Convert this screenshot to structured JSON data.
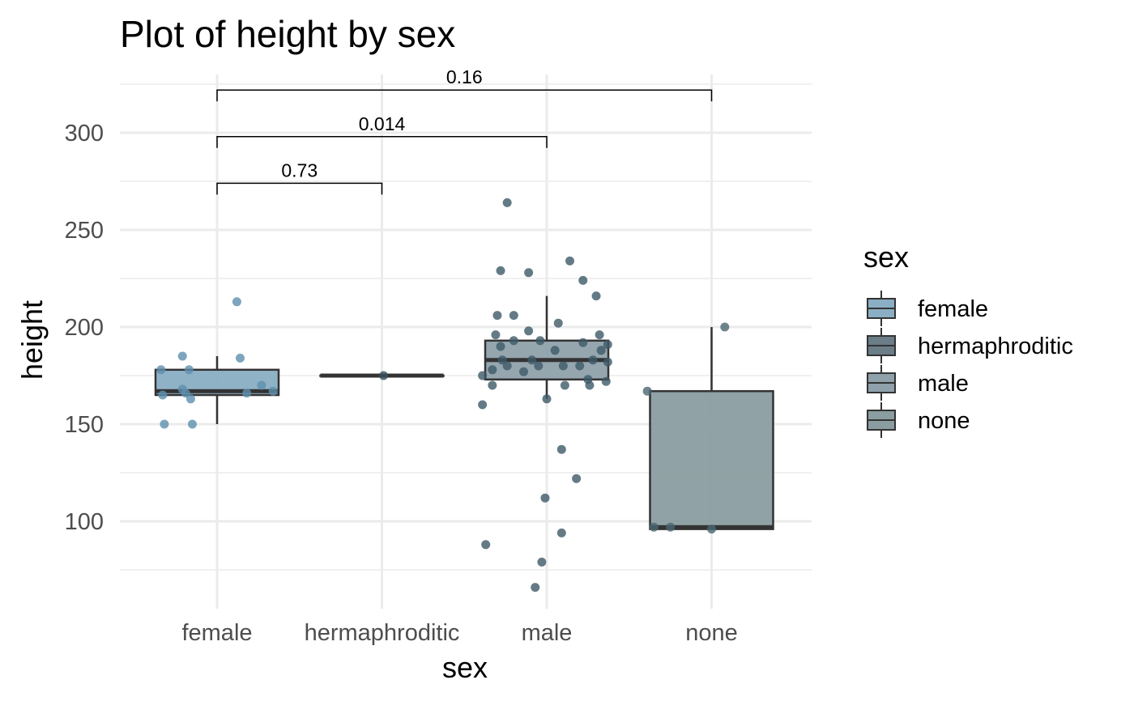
{
  "chart_data": {
    "type": "box",
    "title": "Plot of height by sex",
    "xlabel": "sex",
    "ylabel": "height",
    "categories": [
      "female",
      "hermaphroditic",
      "male",
      "none"
    ],
    "ylim": [
      55,
      330
    ],
    "yticks": [
      100,
      150,
      200,
      250,
      300
    ],
    "grid": true,
    "legend": {
      "title": "sex",
      "position": "right",
      "entries": [
        "female",
        "hermaphroditic",
        "male",
        "none"
      ]
    },
    "colors": {
      "female": "#5e8fae",
      "hermaphroditic": "#37505c",
      "male": "#3d5a68",
      "none": "#4a6770",
      "box_stroke": "#333333",
      "grid": "#ebebeb"
    },
    "boxes": [
      {
        "category": "female",
        "whisker_low": 150,
        "q1": 165,
        "median": 167,
        "q3": 178,
        "whisker_high": 185,
        "fill": "#8aaec4"
      },
      {
        "category": "hermaphroditic",
        "whisker_low": 175,
        "q1": 175,
        "median": 175,
        "q3": 175,
        "whisker_high": 175,
        "fill": "#6b7d87"
      },
      {
        "category": "male",
        "whisker_low": 163,
        "q1": 173,
        "median": 183,
        "q3": 193,
        "whisker_high": 216,
        "fill": "#8fa1ab"
      },
      {
        "category": "none",
        "whisker_low": 96,
        "q1": 96,
        "median": 97,
        "q3": 167,
        "whisker_high": 200,
        "fill": "#8a9da0"
      }
    ],
    "points": [
      {
        "category": "female",
        "jitter": -0.34,
        "y": 178
      },
      {
        "category": "female",
        "jitter": -0.33,
        "y": 165
      },
      {
        "category": "female",
        "jitter": -0.32,
        "y": 150
      },
      {
        "category": "female",
        "jitter": -0.21,
        "y": 185
      },
      {
        "category": "female",
        "jitter": -0.21,
        "y": 168
      },
      {
        "category": "female",
        "jitter": -0.19,
        "y": 166
      },
      {
        "category": "female",
        "jitter": -0.17,
        "y": 178
      },
      {
        "category": "female",
        "jitter": -0.16,
        "y": 163
      },
      {
        "category": "female",
        "jitter": -0.15,
        "y": 150
      },
      {
        "category": "female",
        "jitter": 0.12,
        "y": 213
      },
      {
        "category": "female",
        "jitter": 0.14,
        "y": 184
      },
      {
        "category": "female",
        "jitter": 0.18,
        "y": 166
      },
      {
        "category": "female",
        "jitter": 0.27,
        "y": 170
      },
      {
        "category": "female",
        "jitter": 0.34,
        "y": 167
      },
      {
        "category": "hermaphroditic",
        "jitter": 0.01,
        "y": 175
      },
      {
        "category": "male",
        "jitter": -0.39,
        "y": 175
      },
      {
        "category": "male",
        "jitter": -0.39,
        "y": 160
      },
      {
        "category": "male",
        "jitter": -0.37,
        "y": 88
      },
      {
        "category": "male",
        "jitter": -0.33,
        "y": 178
      },
      {
        "category": "male",
        "jitter": -0.33,
        "y": 170
      },
      {
        "category": "male",
        "jitter": -0.31,
        "y": 196
      },
      {
        "category": "male",
        "jitter": -0.3,
        "y": 206
      },
      {
        "category": "male",
        "jitter": -0.28,
        "y": 229
      },
      {
        "category": "male",
        "jitter": -0.28,
        "y": 190
      },
      {
        "category": "male",
        "jitter": -0.27,
        "y": 183
      },
      {
        "category": "male",
        "jitter": -0.24,
        "y": 180
      },
      {
        "category": "male",
        "jitter": -0.24,
        "y": 264
      },
      {
        "category": "male",
        "jitter": -0.2,
        "y": 206
      },
      {
        "category": "male",
        "jitter": -0.2,
        "y": 193
      },
      {
        "category": "male",
        "jitter": -0.14,
        "y": 177
      },
      {
        "category": "male",
        "jitter": -0.11,
        "y": 198
      },
      {
        "category": "male",
        "jitter": -0.11,
        "y": 228
      },
      {
        "category": "male",
        "jitter": -0.09,
        "y": 183
      },
      {
        "category": "male",
        "jitter": -0.07,
        "y": 66
      },
      {
        "category": "male",
        "jitter": -0.05,
        "y": 180
      },
      {
        "category": "male",
        "jitter": -0.04,
        "y": 193
      },
      {
        "category": "male",
        "jitter": -0.03,
        "y": 79
      },
      {
        "category": "male",
        "jitter": -0.01,
        "y": 112
      },
      {
        "category": "male",
        "jitter": 0.0,
        "y": 163
      },
      {
        "category": "male",
        "jitter": 0.05,
        "y": 188
      },
      {
        "category": "male",
        "jitter": 0.07,
        "y": 202
      },
      {
        "category": "male",
        "jitter": 0.09,
        "y": 94
      },
      {
        "category": "male",
        "jitter": 0.09,
        "y": 137
      },
      {
        "category": "male",
        "jitter": 0.1,
        "y": 180
      },
      {
        "category": "male",
        "jitter": 0.11,
        "y": 170
      },
      {
        "category": "male",
        "jitter": 0.14,
        "y": 234
      },
      {
        "category": "male",
        "jitter": 0.18,
        "y": 122
      },
      {
        "category": "male",
        "jitter": 0.2,
        "y": 180
      },
      {
        "category": "male",
        "jitter": 0.22,
        "y": 192
      },
      {
        "category": "male",
        "jitter": 0.22,
        "y": 224
      },
      {
        "category": "male",
        "jitter": 0.25,
        "y": 173
      },
      {
        "category": "male",
        "jitter": 0.26,
        "y": 170
      },
      {
        "category": "male",
        "jitter": 0.28,
        "y": 183
      },
      {
        "category": "male",
        "jitter": 0.3,
        "y": 216
      },
      {
        "category": "male",
        "jitter": 0.32,
        "y": 196
      },
      {
        "category": "male",
        "jitter": 0.33,
        "y": 188
      },
      {
        "category": "male",
        "jitter": 0.36,
        "y": 172
      },
      {
        "category": "male",
        "jitter": 0.37,
        "y": 182
      },
      {
        "category": "male",
        "jitter": 0.37,
        "y": 191
      },
      {
        "category": "none",
        "jitter": -0.39,
        "y": 167
      },
      {
        "category": "none",
        "jitter": -0.35,
        "y": 97
      },
      {
        "category": "none",
        "jitter": -0.25,
        "y": 97
      },
      {
        "category": "none",
        "jitter": 0.0,
        "y": 96
      },
      {
        "category": "none",
        "jitter": 0.08,
        "y": 200
      }
    ],
    "comparisons": [
      {
        "from": "female",
        "to": "hermaphroditic",
        "y": 274,
        "label": "0.73"
      },
      {
        "from": "female",
        "to": "male",
        "y": 298,
        "label": "0.014"
      },
      {
        "from": "female",
        "to": "none",
        "y": 322,
        "label": "0.16"
      }
    ]
  }
}
